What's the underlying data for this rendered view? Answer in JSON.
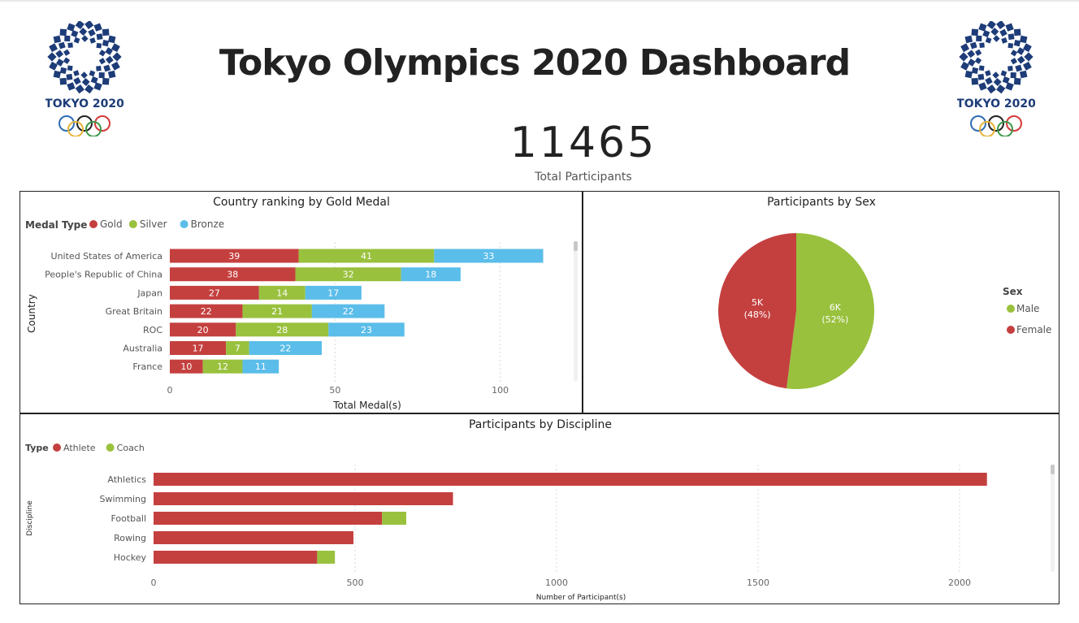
{
  "header": {
    "title": "Tokyo Olympics 2020 Dashboard",
    "logo_text": "TOKYO 2020"
  },
  "kpi": {
    "value": "11465",
    "label": "Total Participants"
  },
  "colors": {
    "gold": "#c4403f",
    "silver": "#99c13d",
    "bronze": "#5bbde9",
    "athlete": "#c4403f",
    "coach": "#99c13d",
    "logo_blue": "#1d3c78"
  },
  "chart_data": [
    {
      "id": "medals",
      "type": "bar",
      "orientation": "horizontal",
      "stacked": true,
      "title": "Country ranking by Gold Medal",
      "xlabel": "Total Medal(s)",
      "ylabel": "Country",
      "legend_title": "Medal Type",
      "legend_position": "top-left",
      "categories": [
        "United States of America",
        "People's Republic of China",
        "Japan",
        "Great Britain",
        "ROC",
        "Australia",
        "France"
      ],
      "series": [
        {
          "name": "Gold",
          "values": [
            39,
            38,
            27,
            22,
            20,
            17,
            10
          ]
        },
        {
          "name": "Silver",
          "values": [
            41,
            32,
            14,
            21,
            28,
            7,
            12
          ]
        },
        {
          "name": "Bronze",
          "values": [
            33,
            18,
            17,
            22,
            23,
            22,
            11
          ]
        }
      ],
      "xlim": [
        0,
        120
      ],
      "xticks": [
        0,
        50,
        100
      ],
      "grid": true
    },
    {
      "id": "sex",
      "type": "pie",
      "title": "Participants by Sex",
      "legend_title": "Sex",
      "legend_position": "right",
      "slices": [
        {
          "name": "Male",
          "value": 52,
          "label": "6K",
          "percent": "(52%)"
        },
        {
          "name": "Female",
          "value": 48,
          "label": "5K",
          "percent": "(48%)"
        }
      ]
    },
    {
      "id": "discipline",
      "type": "bar",
      "orientation": "horizontal",
      "stacked": true,
      "title": "Participants by Discipline",
      "xlabel": "Number of Participant(s)",
      "ylabel": "Discipline",
      "legend_title": "Type",
      "legend_position": "top-left",
      "categories": [
        "Athletics",
        "Swimming",
        "Football",
        "Rowing",
        "Hockey"
      ],
      "series": [
        {
          "name": "Athlete",
          "values": [
            2068,
            743,
            567,
            496,
            406
          ]
        },
        {
          "name": "Coach",
          "values": [
            0,
            0,
            60,
            0,
            44
          ]
        }
      ],
      "xlim": [
        0,
        2250
      ],
      "xticks": [
        0,
        500,
        1000,
        1500,
        2000
      ],
      "grid": true
    }
  ]
}
